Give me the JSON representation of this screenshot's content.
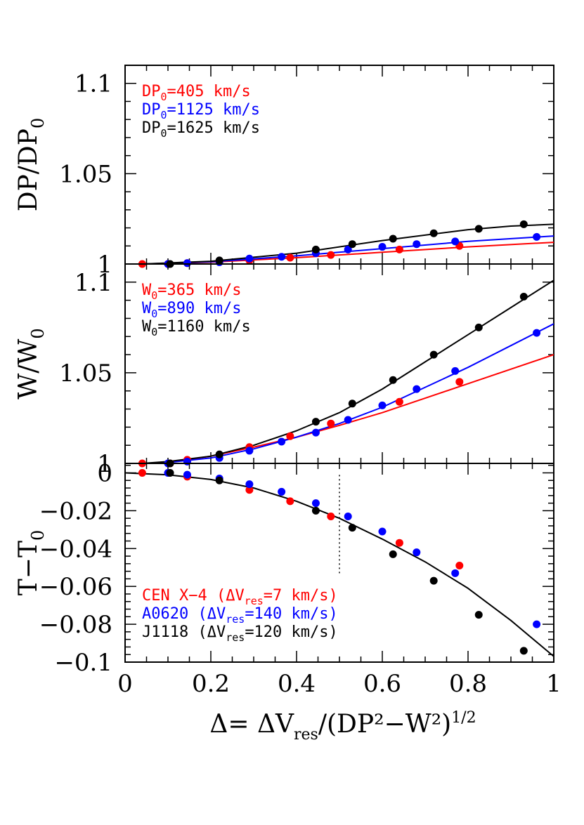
{
  "colors": {
    "red": "#ff0000",
    "blue": "#0000ff",
    "black": "#000000"
  },
  "chart_data": [
    {
      "type": "scatter",
      "ylabel_main": "DP/DP",
      "ylabel_sub": "0",
      "xlim": [
        0,
        1
      ],
      "ylim": [
        1.0,
        1.11
      ],
      "yticks": [
        {
          "v": 1.0,
          "label": "1"
        },
        {
          "v": 1.05,
          "label": "1.05"
        },
        {
          "v": 1.1,
          "label": "1.1"
        }
      ],
      "legend": [
        {
          "pre": "DP",
          "sub": "0",
          "post": "=405 km/s",
          "color": "red"
        },
        {
          "pre": "DP",
          "sub": "0",
          "post": "=1125 km/s",
          "color": "blue"
        },
        {
          "pre": "DP",
          "sub": "0",
          "post": "=1625 km/s",
          "color": "black"
        }
      ],
      "series": [
        {
          "name": "DP0=405 km/s",
          "color": "red",
          "x": [
            0.04,
            0.1,
            0.145,
            0.22,
            0.29,
            0.385,
            0.48,
            0.64,
            0.78
          ],
          "y": [
            1.0,
            1.0,
            1.0005,
            1.0015,
            1.002,
            1.0035,
            1.005,
            1.008,
            1.01
          ],
          "curve_x": [
            0.04,
            0.2,
            0.4,
            0.6,
            0.8,
            1.0
          ],
          "curve_y": [
            1.0,
            1.001,
            1.0035,
            1.0065,
            1.0095,
            1.012
          ]
        },
        {
          "name": "DP0=1125 km/s",
          "color": "blue",
          "x": [
            0.1,
            0.145,
            0.22,
            0.29,
            0.365,
            0.445,
            0.52,
            0.6,
            0.68,
            0.77,
            0.96
          ],
          "y": [
            1.0,
            1.0005,
            1.001,
            1.003,
            1.004,
            1.006,
            1.008,
            1.0095,
            1.011,
            1.0125,
            1.015
          ],
          "curve_x": [
            0.04,
            0.2,
            0.4,
            0.6,
            0.8,
            1.0
          ],
          "curve_y": [
            1.0,
            1.0012,
            1.0045,
            1.0085,
            1.0125,
            1.0155
          ]
        },
        {
          "name": "DP0=1625 km/s",
          "color": "black",
          "x": [
            0.105,
            0.22,
            0.445,
            0.53,
            0.625,
            0.72,
            0.825,
            0.93
          ],
          "y": [
            1.0,
            1.002,
            1.008,
            1.011,
            1.014,
            1.017,
            1.0195,
            1.022
          ],
          "curve_x": [
            0.04,
            0.2,
            0.4,
            0.6,
            0.8,
            0.9,
            1.0
          ],
          "curve_y": [
            1.0,
            1.0015,
            1.006,
            1.013,
            1.019,
            1.021,
            1.022
          ]
        }
      ]
    },
    {
      "type": "scatter",
      "ylabel_main": "W/W",
      "ylabel_sub": "0",
      "xlim": [
        0,
        1
      ],
      "ylim": [
        1.0,
        1.11
      ],
      "yticks": [
        {
          "v": 1.0,
          "label": "1"
        },
        {
          "v": 1.05,
          "label": "1.05"
        },
        {
          "v": 1.1,
          "label": "1.1"
        }
      ],
      "legend": [
        {
          "pre": "W",
          "sub": "0",
          "post": "=365 km/s",
          "color": "red"
        },
        {
          "pre": "W",
          "sub": "0",
          "post": "=890 km/s",
          "color": "blue"
        },
        {
          "pre": "W",
          "sub": "0",
          "post": "=1160 km/s",
          "color": "black"
        }
      ],
      "series": [
        {
          "name": "W0=365 km/s",
          "color": "red",
          "x": [
            0.04,
            0.105,
            0.145,
            0.29,
            0.385,
            0.48,
            0.64,
            0.78
          ],
          "y": [
            1.0,
            1.0,
            1.002,
            1.009,
            1.015,
            1.022,
            1.034,
            1.045
          ],
          "curve_x": [
            0.04,
            0.1,
            0.2,
            0.3,
            0.4,
            0.5,
            0.6,
            0.7,
            0.8,
            1.0
          ],
          "curve_y": [
            1.0,
            1.0005,
            1.004,
            1.009,
            1.0145,
            1.021,
            1.028,
            1.036,
            1.044,
            1.06
          ]
        },
        {
          "name": "W0=890 km/s",
          "color": "blue",
          "x": [
            0.1,
            0.145,
            0.22,
            0.29,
            0.365,
            0.445,
            0.52,
            0.6,
            0.68,
            0.77,
            0.96
          ],
          "y": [
            1.0,
            1.001,
            1.003,
            1.007,
            1.012,
            1.017,
            1.024,
            1.032,
            1.041,
            1.051,
            1.072
          ],
          "curve_x": [
            0.04,
            0.1,
            0.2,
            0.3,
            0.4,
            0.5,
            0.6,
            0.7,
            0.8,
            0.9,
            1.0
          ],
          "curve_y": [
            1.0,
            1.0005,
            1.003,
            1.008,
            1.0145,
            1.022,
            1.031,
            1.042,
            1.053,
            1.065,
            1.077
          ]
        },
        {
          "name": "W0=1160 km/s",
          "color": "black",
          "x": [
            0.105,
            0.22,
            0.445,
            0.53,
            0.625,
            0.72,
            0.825,
            0.93
          ],
          "y": [
            1.0,
            1.005,
            1.023,
            1.033,
            1.046,
            1.06,
            1.075,
            1.092
          ],
          "curve_x": [
            0.04,
            0.1,
            0.2,
            0.3,
            0.4,
            0.5,
            0.6,
            0.7,
            0.8,
            0.9,
            1.0
          ],
          "curve_y": [
            1.0,
            1.001,
            1.004,
            1.01,
            1.018,
            1.028,
            1.041,
            1.056,
            1.071,
            1.086,
            1.101
          ]
        }
      ]
    },
    {
      "type": "scatter",
      "ylabel_main": "T−T",
      "ylabel_sub": "0",
      "xlim": [
        0,
        1
      ],
      "ylim": [
        -0.1,
        0.005
      ],
      "yticks": [
        {
          "v": 0,
          "label": "0"
        },
        {
          "v": -0.02,
          "label": "−0.02"
        },
        {
          "v": -0.04,
          "label": "−0.04"
        },
        {
          "v": -0.06,
          "label": "−0.06"
        },
        {
          "v": -0.08,
          "label": "−0.08"
        },
        {
          "v": -0.1,
          "label": "−0.1"
        }
      ],
      "xticks": [
        {
          "v": 0,
          "label": "0"
        },
        {
          "v": 0.2,
          "label": "0.2"
        },
        {
          "v": 0.4,
          "label": "0.4"
        },
        {
          "v": 0.6,
          "label": "0.6"
        },
        {
          "v": 0.8,
          "label": "0.8"
        },
        {
          "v": 1,
          "label": "1"
        }
      ],
      "xlabel_parts": {
        "a": "Δ=  ΔV",
        "sub": "res",
        "b": "/(DP²−W²)",
        "sup": "1/2"
      },
      "vline_x": 0.5,
      "vline_y": [
        -0.053,
        0.0
      ],
      "legend": [
        {
          "pre": "CEN X−4 (ΔV",
          "sub": "res",
          "post": "=7 km/s)",
          "color": "red"
        },
        {
          "pre": "A0620 (ΔV",
          "sub": "res",
          "post": "=140 km/s)",
          "color": "blue"
        },
        {
          "pre": "J1118 (ΔV",
          "sub": "res",
          "post": "=120 km/s)",
          "color": "black"
        }
      ],
      "series": [
        {
          "name": "CEN X-4",
          "color": "red",
          "x": [
            0.04,
            0.145,
            0.29,
            0.385,
            0.48,
            0.64,
            0.78
          ],
          "y": [
            0.0,
            -0.002,
            -0.009,
            -0.015,
            -0.023,
            -0.037,
            -0.049
          ]
        },
        {
          "name": "A0620",
          "color": "blue",
          "x": [
            0.1,
            0.145,
            0.22,
            0.29,
            0.365,
            0.445,
            0.52,
            0.6,
            0.68,
            0.77,
            0.96
          ],
          "y": [
            0.0,
            -0.001,
            -0.003,
            -0.006,
            -0.01,
            -0.016,
            -0.023,
            -0.031,
            -0.042,
            -0.053,
            -0.08
          ]
        },
        {
          "name": "J1118",
          "color": "black",
          "x": [
            0.105,
            0.22,
            0.445,
            0.53,
            0.625,
            0.72,
            0.825,
            0.93
          ],
          "y": [
            0.0,
            -0.004,
            -0.02,
            -0.029,
            -0.043,
            -0.057,
            -0.075,
            -0.094
          ]
        }
      ],
      "curve": {
        "color": "black",
        "x": [
          0.0,
          0.1,
          0.2,
          0.3,
          0.4,
          0.5,
          0.6,
          0.7,
          0.8,
          0.9,
          1.0
        ],
        "y": [
          0.0,
          -0.001,
          -0.0035,
          -0.008,
          -0.015,
          -0.024,
          -0.035,
          -0.047,
          -0.061,
          -0.078,
          -0.097
        ]
      }
    }
  ]
}
